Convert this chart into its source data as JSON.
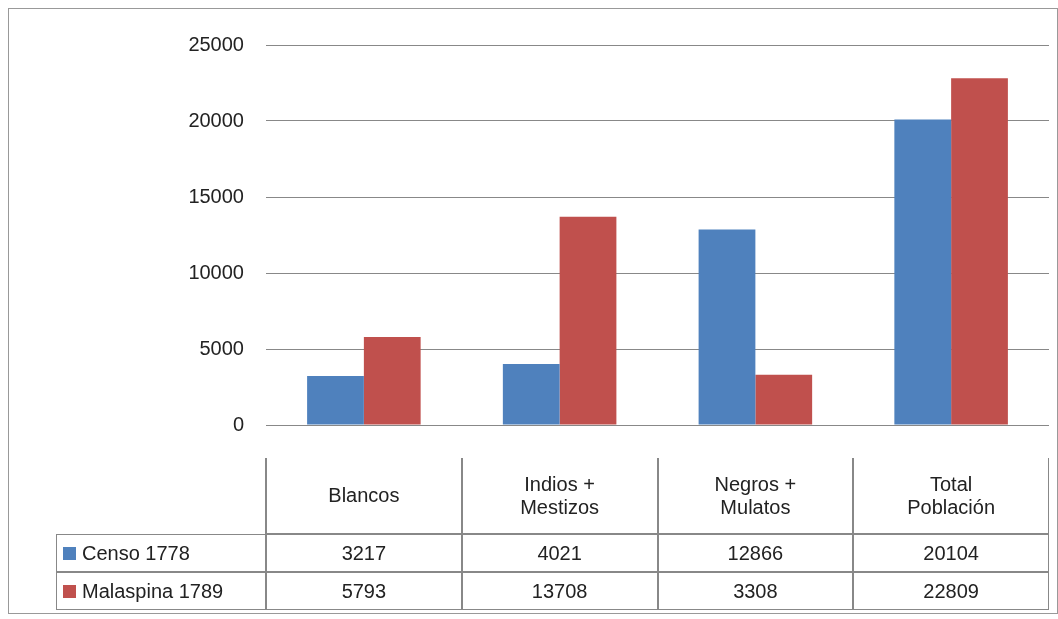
{
  "chart_data": {
    "type": "bar",
    "categories": [
      "Blancos",
      "Indios + Mestizos",
      "Negros + Mulatos",
      "Total Población"
    ],
    "series": [
      {
        "name": "Censo 1778",
        "color": "#4f81bd",
        "values": [
          3217,
          4021,
          12866,
          20104
        ]
      },
      {
        "name": "Malaspina 1789",
        "color": "#c0504d",
        "values": [
          5793,
          13708,
          3308,
          22809
        ]
      }
    ],
    "ylim": [
      0,
      25000
    ],
    "yticks": [
      0,
      5000,
      10000,
      15000,
      20000,
      25000
    ],
    "grid": "y",
    "legend": "bottom left",
    "data_labels": true
  }
}
